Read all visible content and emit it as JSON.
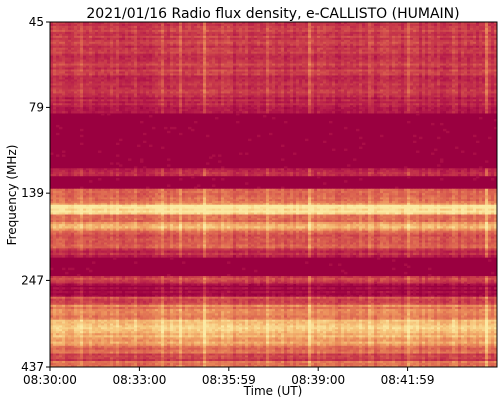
{
  "chart_data": {
    "type": "heatmap",
    "title": "2021/01/16  Radio flux density, e-CALLISTO (HUMAIN)",
    "xlabel": "Time (UT)",
    "ylabel": "Frequency (MHz)",
    "x_ticks": [
      "08:30:00",
      "08:33:00",
      "08:35:59",
      "08:39:00",
      "08:41:59"
    ],
    "y_ticks": [
      "45",
      "79",
      "139",
      "247",
      "437"
    ],
    "y_scale": "log",
    "ylim": [
      45,
      437
    ],
    "colormap": [
      "#9a0040",
      "#b3174a",
      "#c83a4a",
      "#dc6450",
      "#ec915c",
      "#f6c278",
      "#fbeaa3"
    ],
    "frequency_band_intensity": [
      {
        "from": 45,
        "to": 64,
        "level": 0.32
      },
      {
        "from": 64,
        "to": 73,
        "level": 0.28
      },
      {
        "from": 73,
        "to": 82,
        "level": 0.22
      },
      {
        "from": 82,
        "to": 118,
        "level": 0.0
      },
      {
        "from": 118,
        "to": 124,
        "level": 0.25
      },
      {
        "from": 124,
        "to": 135,
        "level": 0.0
      },
      {
        "from": 135,
        "to": 143,
        "level": 0.45
      },
      {
        "from": 143,
        "to": 150,
        "level": 0.6
      },
      {
        "from": 150,
        "to": 160,
        "level": 0.95
      },
      {
        "from": 160,
        "to": 168,
        "level": 0.55
      },
      {
        "from": 168,
        "to": 178,
        "level": 0.75
      },
      {
        "from": 178,
        "to": 200,
        "level": 0.45
      },
      {
        "from": 200,
        "to": 212,
        "level": 0.25
      },
      {
        "from": 212,
        "to": 240,
        "level": 0.0
      },
      {
        "from": 240,
        "to": 252,
        "level": 0.35
      },
      {
        "from": 252,
        "to": 275,
        "level": 0.05
      },
      {
        "from": 275,
        "to": 290,
        "level": 0.4
      },
      {
        "from": 290,
        "to": 320,
        "level": 0.6
      },
      {
        "from": 320,
        "to": 345,
        "level": 0.85
      },
      {
        "from": 345,
        "to": 380,
        "level": 0.75
      },
      {
        "from": 380,
        "to": 400,
        "level": 0.5
      },
      {
        "from": 400,
        "to": 420,
        "level": 0.35
      },
      {
        "from": 420,
        "to": 437,
        "level": 0.55
      }
    ]
  }
}
